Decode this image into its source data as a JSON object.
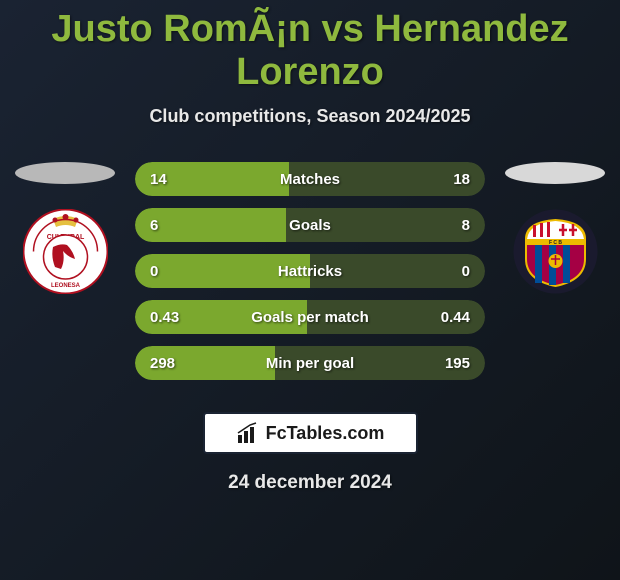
{
  "title": "Justo RomÃ¡n vs Hernandez Lorenzo",
  "subtitle": "Club competitions, Season 2024/2025",
  "date": "24 december 2024",
  "brand": "FcTables.com",
  "colors": {
    "accent": "#8fb93e",
    "bar_left": "#7ba82e",
    "bar_right": "#3a4a2a",
    "bg_dark": "#0f1419",
    "text_light": "#e8e8e8"
  },
  "players": {
    "left": {
      "oval_color": "#b8b8b8",
      "club": "Cultural Leonesa"
    },
    "right": {
      "oval_color": "#d8d8d8",
      "club": "FC Barcelona"
    }
  },
  "stats": [
    {
      "label": "Matches",
      "left_val": "14",
      "right_val": "18",
      "left_pct": 44,
      "right_pct": 56
    },
    {
      "label": "Goals",
      "left_val": "6",
      "right_val": "8",
      "left_pct": 43,
      "right_pct": 57
    },
    {
      "label": "Hattricks",
      "left_val": "0",
      "right_val": "0",
      "left_pct": 50,
      "right_pct": 50
    },
    {
      "label": "Goals per match",
      "left_val": "0.43",
      "right_val": "0.44",
      "left_pct": 49,
      "right_pct": 51
    },
    {
      "label": "Min per goal",
      "left_val": "298",
      "right_val": "195",
      "left_pct": 40,
      "right_pct": 60
    }
  ]
}
